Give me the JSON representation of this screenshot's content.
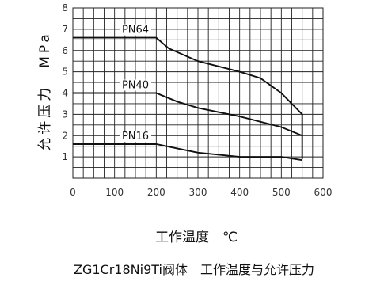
{
  "chart_data": {
    "type": "line",
    "xlabel": "工作温度　℃",
    "ylabel": "允许压力　MPa",
    "caption": "ZG1Cr18Ni9Ti阀体　工作温度与允许压力",
    "xlim": [
      0,
      600
    ],
    "ylim": [
      0,
      8
    ],
    "x_ticks": [
      "0",
      "100",
      "200",
      "300",
      "400",
      "500",
      "600"
    ],
    "y_ticks": [
      "1",
      "2",
      "3",
      "4",
      "5",
      "6",
      "7",
      "8"
    ],
    "grid": true,
    "series": [
      {
        "name": "PN64",
        "points": [
          [
            0,
            6.6
          ],
          [
            200,
            6.6
          ],
          [
            230,
            6.1
          ],
          [
            300,
            5.5
          ],
          [
            400,
            5.0
          ],
          [
            450,
            4.7
          ],
          [
            500,
            4.0
          ],
          [
            540,
            3.2
          ],
          [
            550,
            3.0
          ],
          [
            550,
            0.9
          ]
        ]
      },
      {
        "name": "PN40",
        "points": [
          [
            0,
            4.0
          ],
          [
            200,
            4.0
          ],
          [
            250,
            3.6
          ],
          [
            300,
            3.3
          ],
          [
            400,
            2.9
          ],
          [
            500,
            2.4
          ],
          [
            550,
            2.0
          ]
        ]
      },
      {
        "name": "PN16",
        "points": [
          [
            0,
            1.6
          ],
          [
            200,
            1.6
          ],
          [
            250,
            1.4
          ],
          [
            300,
            1.2
          ],
          [
            400,
            1.0
          ],
          [
            500,
            1.0
          ],
          [
            550,
            0.85
          ]
        ]
      }
    ]
  }
}
